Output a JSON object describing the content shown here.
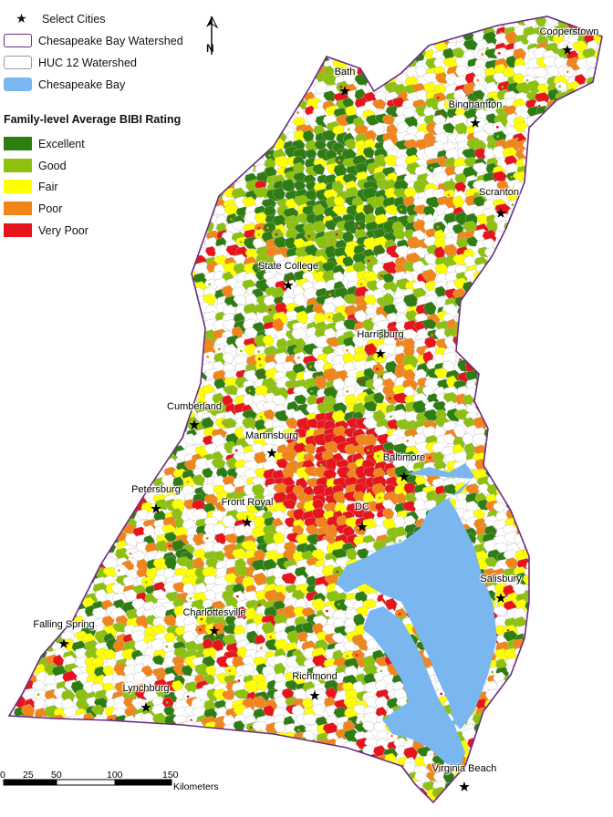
{
  "legend": {
    "select_cities": "Select Cities",
    "watershed": "Chesapeake Bay Watershed",
    "huc12": "HUC 12 Watershed",
    "bay": "Chesapeake Bay",
    "rating_title": "Family-level Average BIBI Rating",
    "ratings": [
      {
        "label": "Excellent",
        "color": "#2e7d12"
      },
      {
        "label": "Good",
        "color": "#8cc20e"
      },
      {
        "label": "Fair",
        "color": "#ffff00"
      },
      {
        "label": "Poor",
        "color": "#f2851a"
      },
      {
        "label": "Very Poor",
        "color": "#e8141b"
      }
    ]
  },
  "colors": {
    "bay": "#7ab6f0",
    "watershed_outline": "#6b2d82",
    "background": "#ffffff"
  },
  "cities": [
    {
      "name": "Cooperstown"
    },
    {
      "name": "Bath"
    },
    {
      "name": "Binghamton"
    },
    {
      "name": "Scranton"
    },
    {
      "name": "State College"
    },
    {
      "name": "Harrisburg"
    },
    {
      "name": "Cumberland"
    },
    {
      "name": "Martinsburg"
    },
    {
      "name": "Baltimore"
    },
    {
      "name": "Petersburg"
    },
    {
      "name": "Front Royal"
    },
    {
      "name": "DC"
    },
    {
      "name": "Salisbury"
    },
    {
      "name": "Falling Spring"
    },
    {
      "name": "Charlottesville"
    },
    {
      "name": "Richmond"
    },
    {
      "name": "Lynchburg"
    },
    {
      "name": "Virginia Beach"
    }
  ],
  "scale_bar": {
    "ticks": [
      "0",
      "25",
      "50",
      "100",
      "150"
    ],
    "unit": "Kilometers"
  },
  "north_arrow": {
    "label": "N"
  }
}
